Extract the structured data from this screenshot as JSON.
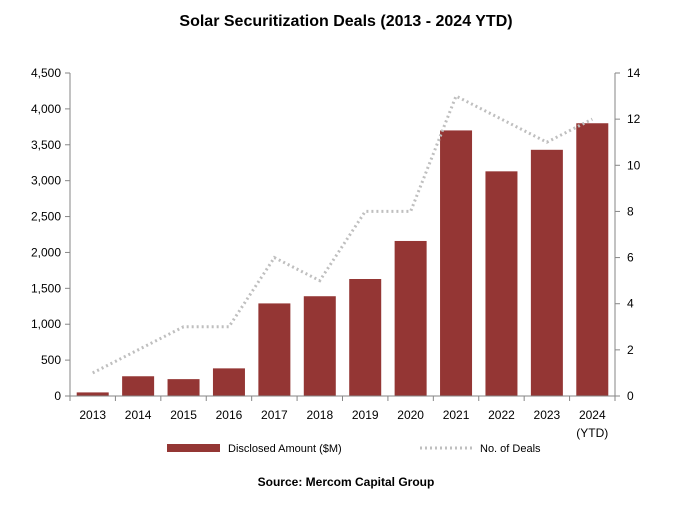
{
  "chart_data": {
    "type": "bar",
    "title": "Solar Securitization Deals (2013 - 2024 YTD)",
    "source": "Source: Mercom Capital Group",
    "categories": [
      "2013",
      "2014",
      "2015",
      "2016",
      "2017",
      "2018",
      "2019",
      "2020",
      "2021",
      "2022",
      "2023",
      "2024"
    ],
    "category_sublabels": [
      "",
      "",
      "",
      "",
      "",
      "",
      "",
      "",
      "",
      "",
      "",
      "(YTD)"
    ],
    "series": [
      {
        "name": "Disclosed Amount ($M)",
        "type": "bar",
        "axis": "left",
        "color": "#943634",
        "values": [
          50,
          275,
          235,
          385,
          1290,
          1390,
          1630,
          2160,
          3700,
          3130,
          3430,
          3800
        ]
      },
      {
        "name": "No. of Deals",
        "type": "line",
        "axis": "right",
        "color": "#bfbfbf",
        "line_style": "dotted",
        "values": [
          1,
          2,
          3,
          3,
          6,
          5,
          8,
          8,
          13,
          12,
          11,
          12
        ]
      }
    ],
    "y_left": {
      "min": 0,
      "max": 4500,
      "ticks": [
        "0",
        "500",
        "1,000",
        "1,500",
        "2,000",
        "2,500",
        "3,000",
        "3,500",
        "4,000",
        "4,500"
      ]
    },
    "y_right": {
      "min": 0,
      "max": 14,
      "ticks": [
        "0",
        "2",
        "4",
        "6",
        "8",
        "10",
        "12",
        "14"
      ]
    },
    "grid": false,
    "legend_position": "bottom"
  }
}
